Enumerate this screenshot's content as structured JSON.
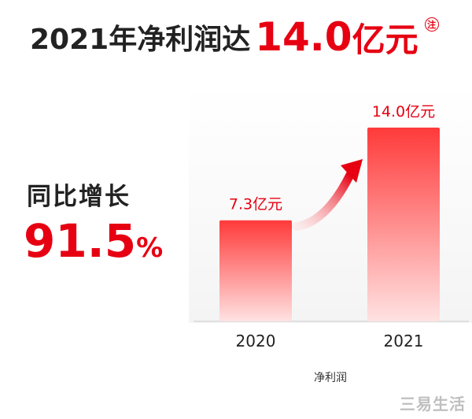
{
  "headline": {
    "text": "2021年净利润达",
    "value": "14.0",
    "unit": "亿元",
    "note_mark": "注"
  },
  "growth": {
    "label": "同比增长",
    "value": "91.5",
    "unit": "%"
  },
  "colors": {
    "accent": "#e60012",
    "bar_top": "#ff3a3a",
    "bar_bottom": "#ffe2e2",
    "axis": "#cccccc"
  },
  "chart_data": {
    "type": "bar",
    "categories": [
      "2020",
      "2021"
    ],
    "values": [
      7.3,
      14.0
    ],
    "data_labels": [
      "7.3亿元",
      "14.0亿元"
    ],
    "xlabel": "净利润",
    "ylabel": "",
    "ylim": [
      0,
      16.5
    ],
    "grid": false,
    "annotations": [
      "growth-arrow"
    ]
  },
  "watermark": "三易生活"
}
